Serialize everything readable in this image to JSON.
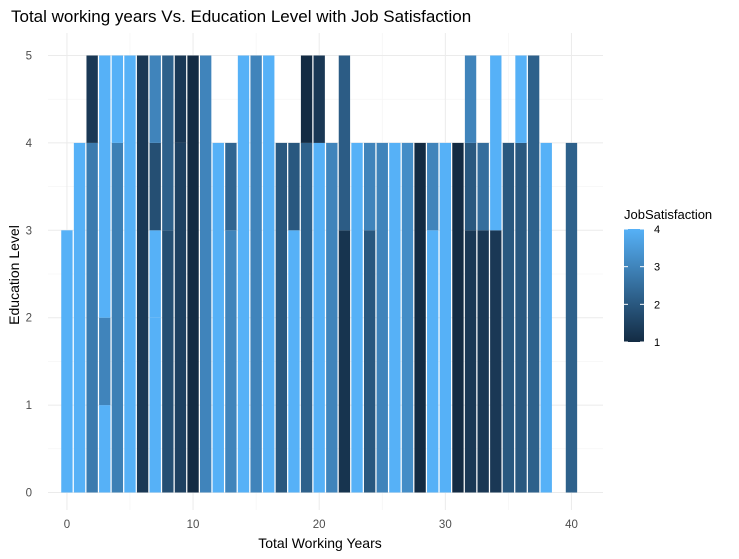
{
  "chart_data": {
    "type": "bar",
    "title": "Total working years Vs. Education Level with Job Satisfaction",
    "xlabel": "Total Working Years",
    "ylabel": "Education Level",
    "xlim": [
      -1.5,
      42.5
    ],
    "ylim": [
      0,
      5
    ],
    "x_ticks": [
      0,
      10,
      20,
      30,
      40
    ],
    "y_ticks": [
      0,
      1,
      2,
      3,
      4,
      5
    ],
    "grid": true,
    "colors": {
      "low": "#132B43",
      "high": "#56B1F7"
    },
    "legend": {
      "title": "JobSatisfaction",
      "position": "right",
      "ticks": [
        1,
        2,
        3,
        4
      ],
      "range": [
        1,
        4
      ]
    },
    "bars": [
      {
        "x": 0,
        "segments": [
          {
            "top": 3,
            "js": 4
          }
        ]
      },
      {
        "x": 1,
        "segments": [
          {
            "top": 4,
            "js": 4
          }
        ]
      },
      {
        "x": 2,
        "segments": [
          {
            "top": 4,
            "js": 2.8
          },
          {
            "top": 5,
            "js": 1.3
          }
        ]
      },
      {
        "x": 3,
        "segments": [
          {
            "top": 1,
            "js": 4
          },
          {
            "top": 2,
            "js": 3
          },
          {
            "top": 5,
            "js": 4
          }
        ]
      },
      {
        "x": 4,
        "segments": [
          {
            "top": 4,
            "js": 2.9
          },
          {
            "top": 5,
            "js": 4
          }
        ]
      },
      {
        "x": 5,
        "segments": [
          {
            "top": 5,
            "js": 4
          }
        ]
      },
      {
        "x": 6,
        "segments": [
          {
            "top": 5,
            "js": 1.3
          }
        ]
      },
      {
        "x": 7,
        "segments": [
          {
            "top": 2,
            "js": 4
          },
          {
            "top": 3,
            "js": 4
          },
          {
            "top": 4,
            "js": 1.8
          },
          {
            "top": 5,
            "js": 3
          }
        ]
      },
      {
        "x": 8,
        "segments": [
          {
            "top": 3,
            "js": 1.8
          },
          {
            "top": 5,
            "js": 2.2
          }
        ]
      },
      {
        "x": 9,
        "segments": [
          {
            "top": 4,
            "js": 1.5
          },
          {
            "top": 5,
            "js": 1.3
          }
        ]
      },
      {
        "x": 10,
        "segments": [
          {
            "top": 5,
            "js": 1
          }
        ]
      },
      {
        "x": 11,
        "segments": [
          {
            "top": 5,
            "js": 3
          }
        ]
      },
      {
        "x": 12,
        "segments": [
          {
            "top": 4,
            "js": 4
          }
        ]
      },
      {
        "x": 13,
        "segments": [
          {
            "top": 3,
            "js": 3
          },
          {
            "top": 4,
            "js": 2.3
          }
        ]
      },
      {
        "x": 14,
        "segments": [
          {
            "top": 5,
            "js": 4
          }
        ]
      },
      {
        "x": 15,
        "segments": [
          {
            "top": 5,
            "js": 3
          }
        ]
      },
      {
        "x": 16,
        "segments": [
          {
            "top": 5,
            "js": 4
          }
        ]
      },
      {
        "x": 17,
        "segments": [
          {
            "top": 4,
            "js": 2
          }
        ]
      },
      {
        "x": 18,
        "segments": [
          {
            "top": 3,
            "js": 4
          },
          {
            "top": 4,
            "js": 2
          }
        ]
      },
      {
        "x": 19,
        "segments": [
          {
            "top": 4,
            "js": 2.2
          },
          {
            "top": 5,
            "js": 1
          }
        ]
      },
      {
        "x": 20,
        "segments": [
          {
            "top": 4,
            "js": 4
          },
          {
            "top": 5,
            "js": 1.3
          }
        ]
      },
      {
        "x": 21,
        "segments": [
          {
            "top": 4,
            "js": 3
          }
        ]
      },
      {
        "x": 22,
        "segments": [
          {
            "top": 3,
            "js": 1.2
          },
          {
            "top": 5,
            "js": 2.1
          }
        ]
      },
      {
        "x": 23,
        "segments": [
          {
            "top": 4,
            "js": 4
          }
        ]
      },
      {
        "x": 24,
        "segments": [
          {
            "top": 3,
            "js": 2
          },
          {
            "top": 4,
            "js": 3
          }
        ]
      },
      {
        "x": 25,
        "segments": [
          {
            "top": 4,
            "js": 3
          }
        ]
      },
      {
        "x": 26,
        "segments": [
          {
            "top": 4,
            "js": 4
          }
        ]
      },
      {
        "x": 27,
        "segments": [
          {
            "top": 4,
            "js": 3.2
          }
        ]
      },
      {
        "x": 28,
        "segments": [
          {
            "top": 4,
            "js": 1
          }
        ]
      },
      {
        "x": 29,
        "segments": [
          {
            "top": 3,
            "js": 4
          },
          {
            "top": 4,
            "js": 3
          }
        ]
      },
      {
        "x": 30,
        "segments": [
          {
            "top": 4,
            "js": 4
          }
        ]
      },
      {
        "x": 31,
        "segments": [
          {
            "top": 4,
            "js": 1
          }
        ]
      },
      {
        "x": 32,
        "segments": [
          {
            "top": 3,
            "js": 1.3
          },
          {
            "top": 4,
            "js": 2
          },
          {
            "top": 5,
            "js": 3
          }
        ]
      },
      {
        "x": 33,
        "segments": [
          {
            "top": 3,
            "js": 1.3
          },
          {
            "top": 4,
            "js": 2.5
          }
        ]
      },
      {
        "x": 34,
        "segments": [
          {
            "top": 3,
            "js": 1.3
          },
          {
            "top": 5,
            "js": 4
          }
        ]
      },
      {
        "x": 35,
        "segments": [
          {
            "top": 4,
            "js": 2
          }
        ]
      },
      {
        "x": 36,
        "segments": [
          {
            "top": 4,
            "js": 2
          },
          {
            "top": 5,
            "js": 4
          }
        ]
      },
      {
        "x": 37,
        "segments": [
          {
            "top": 5,
            "js": 2.2
          }
        ]
      },
      {
        "x": 38,
        "segments": [
          {
            "top": 4,
            "js": 4
          }
        ]
      },
      {
        "x": 40,
        "segments": [
          {
            "top": 4,
            "js": 2.2
          }
        ]
      }
    ]
  }
}
